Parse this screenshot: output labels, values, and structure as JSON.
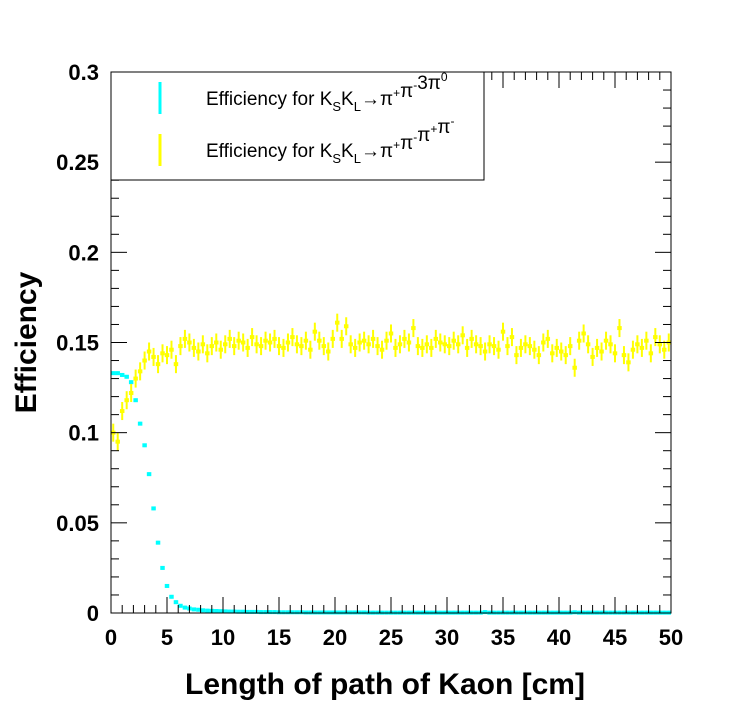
{
  "chart_data": {
    "type": "scatter",
    "xlabel": "Length of path of Kaon [cm]",
    "ylabel": "Efficiency",
    "xlim": [
      0,
      50
    ],
    "ylim": [
      0,
      0.3
    ],
    "x_ticks": [
      "0",
      "5",
      "10",
      "15",
      "20",
      "25",
      "30",
      "35",
      "40",
      "45",
      "50"
    ],
    "y_ticks": [
      "0",
      "0.05",
      "0.1",
      "0.15",
      "0.2",
      "0.25",
      "0.3"
    ],
    "grid": false,
    "legend": {
      "placement": "top-left",
      "entries": [
        {
          "prefix": "Efficiency for K",
          "sub1": "S",
          "mid": "K",
          "sub2": "L",
          "arrow": "→",
          "decay": [
            [
              "π",
              "+"
            ],
            [
              "π",
              "-"
            ],
            [
              "3π",
              "0"
            ]
          ]
        },
        {
          "prefix": "Efficiency for K",
          "sub1": "S",
          "mid": "K",
          "sub2": "L",
          "arrow": "→",
          "decay": [
            [
              "π",
              "+"
            ],
            [
              "π",
              "-"
            ],
            [
              "π",
              "+"
            ],
            [
              "π",
              "-"
            ]
          ]
        }
      ]
    },
    "series": [
      {
        "name": "Efficiency for KSKL→π+π-3π0",
        "color": "#00ffff",
        "x": [
          0.2,
          0.6,
          1.0,
          1.4,
          1.8,
          2.2,
          2.6,
          3.0,
          3.4,
          3.8,
          4.2,
          4.6,
          5.0,
          5.4,
          5.8,
          6.2,
          6.6,
          7.0,
          7.4,
          7.8,
          8.2,
          8.6,
          9.0,
          9.4,
          9.8,
          10.2,
          10.6,
          11.0,
          11.4,
          11.8,
          12.2,
          12.6,
          13.0,
          13.4,
          13.8,
          14.2,
          14.6,
          15.0,
          15.4,
          15.8,
          16.2,
          16.6,
          17.0,
          17.4,
          17.8,
          18.2,
          18.6,
          19.0,
          19.4,
          19.8,
          20.2,
          20.6,
          21.0,
          21.4,
          21.8,
          22.2,
          22.6,
          23.0,
          23.4,
          23.8,
          24.2,
          24.6,
          25.0,
          25.4,
          25.8,
          26.2,
          26.6,
          27.0,
          27.4,
          27.8,
          28.2,
          28.6,
          29.0,
          29.4,
          29.8,
          30.2,
          30.6,
          31.0,
          31.4,
          31.8,
          32.2,
          32.6,
          33.0,
          33.4,
          33.8,
          34.2,
          34.6,
          35.0,
          35.4,
          35.8,
          36.2,
          36.6,
          37.0,
          37.4,
          37.8,
          38.2,
          38.6,
          39.0,
          39.4,
          39.8,
          40.2,
          40.6,
          41.0,
          41.4,
          41.8,
          42.2,
          42.6,
          43.0,
          43.4,
          43.8,
          44.2,
          44.6,
          45.0,
          45.4,
          45.8,
          46.2,
          46.6,
          47.0,
          47.4,
          47.8,
          48.2,
          48.6,
          49.0,
          49.4,
          49.8
        ],
        "y": [
          0.133,
          0.133,
          0.132,
          0.131,
          0.128,
          0.118,
          0.105,
          0.093,
          0.077,
          0.058,
          0.039,
          0.025,
          0.015,
          0.009,
          0.006,
          0.004,
          0.003,
          0.0025,
          0.002,
          0.0018,
          0.0015,
          0.0013,
          0.0012,
          0.0011,
          0.001,
          0.0009,
          0.0008,
          0.0008,
          0.0007,
          0.0007,
          0.0006,
          0.0006,
          0.0006,
          0.0005,
          0.0005,
          0.0005,
          0.0005,
          0.0004,
          0.0004,
          0.0004,
          0.0004,
          0.0004,
          0.0004,
          0.0003,
          0.0003,
          0.0003,
          0.0003,
          0.0003,
          0.0003,
          0.0003,
          0.0003,
          0.0003,
          0.0003,
          0.0003,
          0.0003,
          0.0003,
          0.0003,
          0.0002,
          0.0002,
          0.0002,
          0.0002,
          0.0002,
          0.0002,
          0.0002,
          0.0002,
          0.0002,
          0.0002,
          0.0002,
          0.0002,
          0.0002,
          0.0002,
          0.0002,
          0.0002,
          0.0002,
          0.0002,
          0.0002,
          0.0002,
          0.0002,
          0.0002,
          0.0002,
          0.0002,
          0.0002,
          0.0002,
          0.0005,
          0.0002,
          0.0002,
          0.0002,
          0.0002,
          0.0002,
          0.0002,
          0.0002,
          0.0002,
          0.0002,
          0.0002,
          0.0002,
          0.0002,
          0.0002,
          0.0002,
          0.0002,
          0.0002,
          0.0002,
          0.0002,
          0.0002,
          0.0004,
          0.0002,
          0.0002,
          0.0002,
          0.0002,
          0.0002,
          0.0002,
          0.0002,
          0.0002,
          0.0002,
          0.0002,
          0.0002,
          0.0002,
          0.0002,
          0.0002,
          0.0002,
          0.0002,
          0.0002,
          0.0002,
          0.0002,
          0.0002,
          0.0002
        ],
        "err": 0.001
      },
      {
        "name": "Efficiency for KSKL→π+π-π+π-",
        "color": "#ffff00",
        "x": [
          0.2,
          0.6,
          1.0,
          1.4,
          1.8,
          2.2,
          2.6,
          3.0,
          3.4,
          3.8,
          4.2,
          4.6,
          5.0,
          5.4,
          5.8,
          6.2,
          6.6,
          7.0,
          7.4,
          7.8,
          8.2,
          8.6,
          9.0,
          9.4,
          9.8,
          10.2,
          10.6,
          11.0,
          11.4,
          11.8,
          12.2,
          12.6,
          13.0,
          13.4,
          13.8,
          14.2,
          14.6,
          15.0,
          15.4,
          15.8,
          16.2,
          16.6,
          17.0,
          17.4,
          17.8,
          18.2,
          18.6,
          19.0,
          19.4,
          19.8,
          20.2,
          20.6,
          21.0,
          21.4,
          21.8,
          22.2,
          22.6,
          23.0,
          23.4,
          23.8,
          24.2,
          24.6,
          25.0,
          25.4,
          25.8,
          26.2,
          26.6,
          27.0,
          27.4,
          27.8,
          28.2,
          28.6,
          29.0,
          29.4,
          29.8,
          30.2,
          30.6,
          31.0,
          31.4,
          31.8,
          32.2,
          32.6,
          33.0,
          33.4,
          33.8,
          34.2,
          34.6,
          35.0,
          35.4,
          35.8,
          36.2,
          36.6,
          37.0,
          37.4,
          37.8,
          38.2,
          38.6,
          39.0,
          39.4,
          39.8,
          40.2,
          40.6,
          41.0,
          41.4,
          41.8,
          42.2,
          42.6,
          43.0,
          43.4,
          43.8,
          44.2,
          44.6,
          45.0,
          45.4,
          45.8,
          46.2,
          46.6,
          47.0,
          47.4,
          47.8,
          48.2,
          48.6,
          49.0,
          49.4,
          49.8
        ],
        "y": [
          0.1,
          0.095,
          0.112,
          0.118,
          0.122,
          0.13,
          0.134,
          0.14,
          0.145,
          0.142,
          0.138,
          0.144,
          0.143,
          0.146,
          0.138,
          0.148,
          0.152,
          0.15,
          0.147,
          0.145,
          0.149,
          0.144,
          0.148,
          0.15,
          0.146,
          0.149,
          0.152,
          0.148,
          0.151,
          0.15,
          0.147,
          0.153,
          0.149,
          0.148,
          0.151,
          0.15,
          0.152,
          0.148,
          0.147,
          0.15,
          0.153,
          0.149,
          0.148,
          0.151,
          0.146,
          0.156,
          0.151,
          0.148,
          0.145,
          0.152,
          0.161,
          0.152,
          0.159,
          0.149,
          0.147,
          0.15,
          0.151,
          0.149,
          0.152,
          0.148,
          0.146,
          0.151,
          0.155,
          0.147,
          0.149,
          0.152,
          0.15,
          0.158,
          0.148,
          0.147,
          0.149,
          0.147,
          0.152,
          0.15,
          0.149,
          0.148,
          0.151,
          0.149,
          0.154,
          0.147,
          0.152,
          0.149,
          0.148,
          0.145,
          0.149,
          0.148,
          0.146,
          0.156,
          0.148,
          0.153,
          0.143,
          0.147,
          0.149,
          0.148,
          0.146,
          0.143,
          0.15,
          0.152,
          0.144,
          0.147,
          0.145,
          0.143,
          0.148,
          0.136,
          0.151,
          0.155,
          0.149,
          0.142,
          0.147,
          0.145,
          0.151,
          0.149,
          0.144,
          0.158,
          0.143,
          0.139,
          0.146,
          0.149,
          0.147,
          0.151,
          0.144,
          0.153,
          0.149,
          0.146,
          0.15
        ],
        "err": 0.005
      }
    ]
  }
}
